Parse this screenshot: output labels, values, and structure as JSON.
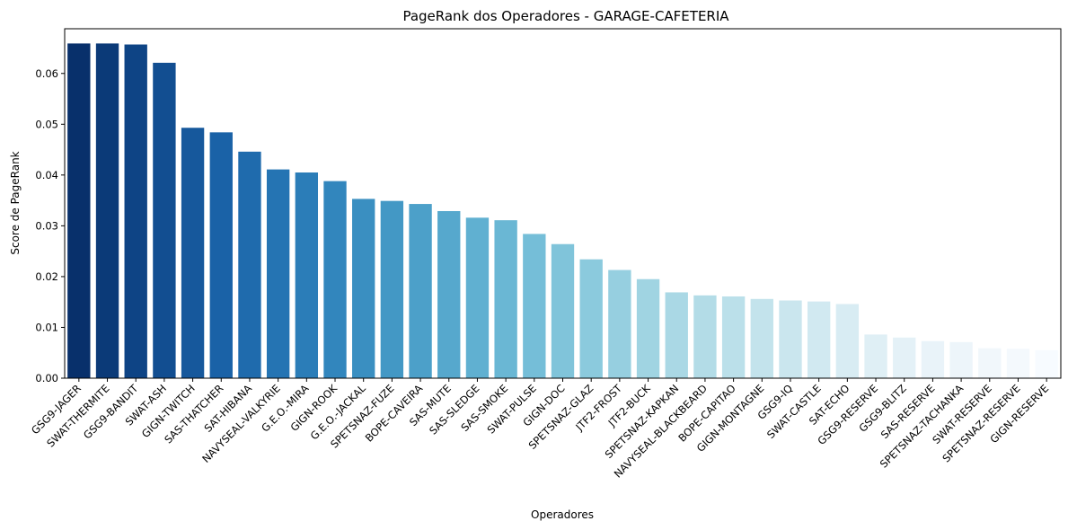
{
  "chart_data": {
    "type": "bar",
    "title": "PageRank dos Operadores - GARAGE-CAFETERIA",
    "xlabel": "Operadores",
    "ylabel": "Score de PageRank",
    "ylim": [
      0,
      0.0688
    ],
    "yticks": [
      "0.00",
      "0.01",
      "0.02",
      "0.03",
      "0.04",
      "0.05",
      "0.06"
    ],
    "categories": [
      "GSG9-JAGER",
      "SWAT-THERMITE",
      "GSG9-BANDIT",
      "SWAT-ASH",
      "GIGN-TWITCH",
      "SAS-THATCHER",
      "SAT-HIBANA",
      "NAVYSEAL-VALKYRIE",
      "G.E.O.-MIRA",
      "GIGN-ROOK",
      "G.E.O.-JACKAL",
      "SPETSNAZ-FUZE",
      "BOPE-CAVEIRA",
      "SAS-MUTE",
      "SAS-SLEDGE",
      "SAS-SMOKE",
      "SWAT-PULSE",
      "GIGN-DOC",
      "SPETSNAZ-GLAZ",
      "JTF2-FROST",
      "JTF2-BUCK",
      "SPETSNAZ-KAPKAN",
      "NAVYSEAL-BLACKBEARD",
      "BOPE-CAPITAO",
      "GIGN-MONTAGNE",
      "GSG9-IQ",
      "SWAT-CASTLE",
      "SAT-ECHO",
      "GSG9-RESERVE",
      "GSG9-BLITZ",
      "SAS-RESERVE",
      "SPETSNAZ-TACHANKA",
      "SWAT-RESERVE",
      "SPETSNAZ-RESERVE",
      "GIGN-RESERVE"
    ],
    "values": [
      0.0659,
      0.0659,
      0.0657,
      0.0621,
      0.0493,
      0.0484,
      0.0446,
      0.0411,
      0.0405,
      0.0388,
      0.0353,
      0.0349,
      0.0343,
      0.0329,
      0.0316,
      0.0311,
      0.0284,
      0.0264,
      0.0234,
      0.0213,
      0.0195,
      0.0169,
      0.0163,
      0.0161,
      0.0156,
      0.0153,
      0.0151,
      0.0146,
      0.0086,
      0.008,
      0.0073,
      0.0071,
      0.0059,
      0.0058,
      0.0055
    ],
    "colors": [
      "#08306b",
      "#0b3a78",
      "#0e4485",
      "#124e91",
      "#16589c",
      "#1a62a7",
      "#1f6bad",
      "#2574b3",
      "#2b7db8",
      "#3286bd",
      "#3a8fc1",
      "#4398c5",
      "#4ca0c9",
      "#56a8cd",
      "#60b0d1",
      "#6ab7d4",
      "#75bed8",
      "#80c4da",
      "#8bcadd",
      "#96cfe0",
      "#a0d4e2",
      "#aad8e5",
      "#b3dce7",
      "#bbe0ea",
      "#c3e3ec",
      "#cae6ee",
      "#d1e9f1",
      "#d8ecf3",
      "#dfeff5",
      "#e4f1f7",
      "#e9f3f9",
      "#edf5fa",
      "#f1f7fb",
      "#f4f9fd",
      "#f7fbff"
    ],
    "grid": false,
    "legend": "none",
    "palette": "Blues (reversed)"
  }
}
